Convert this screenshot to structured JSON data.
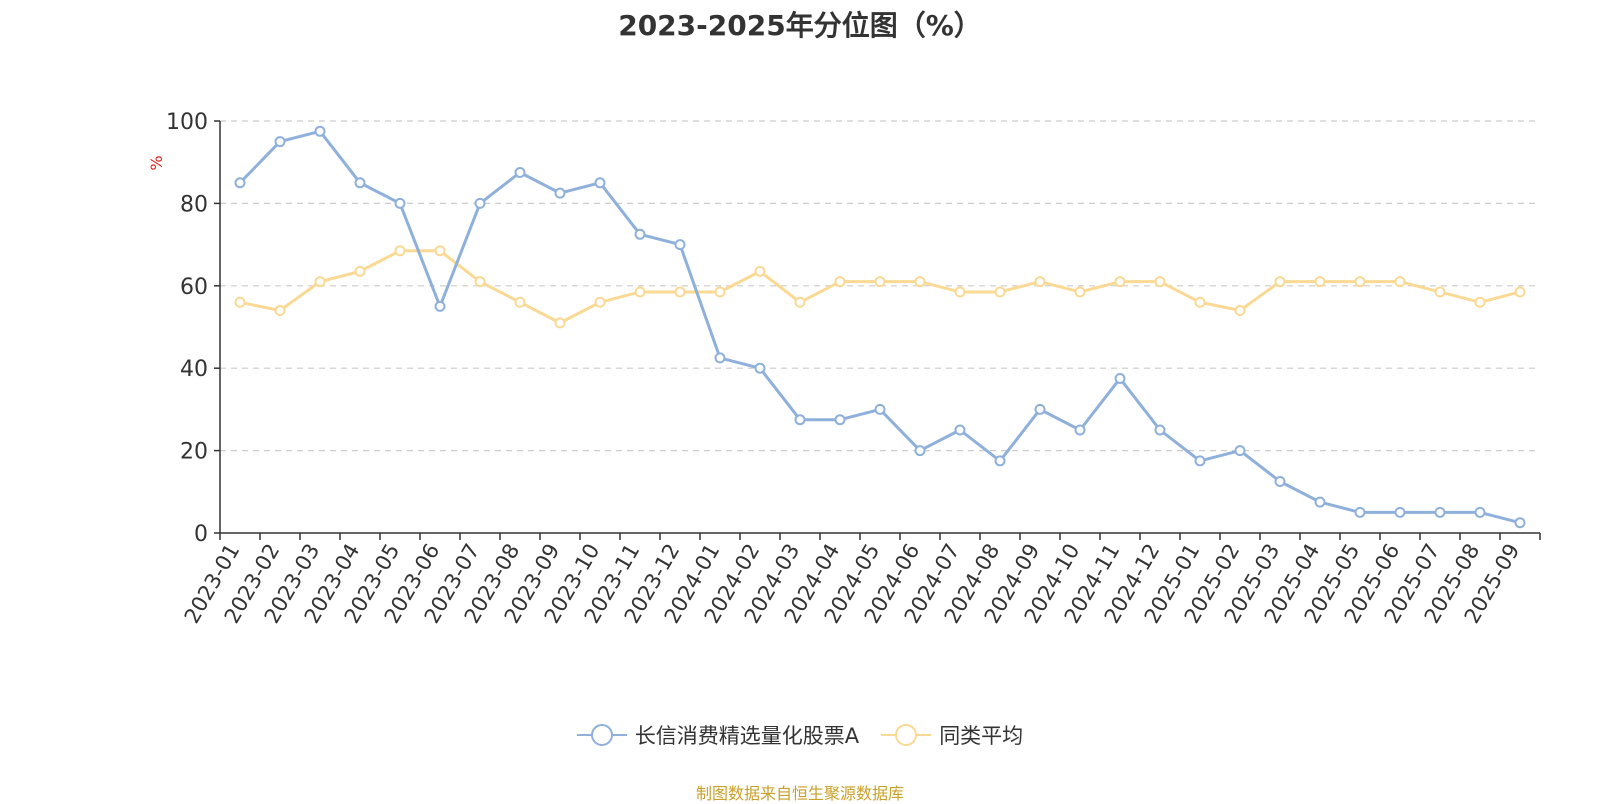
{
  "chart_data": {
    "type": "line",
    "title": "2023-2025年分位图（%）",
    "ylabel": "%",
    "ylim": [
      0,
      100
    ],
    "yticks": [
      0,
      20,
      40,
      60,
      80,
      100
    ],
    "grid": true,
    "legend_position": "bottom",
    "categories": [
      "2023-01",
      "2023-02",
      "2023-03",
      "2023-04",
      "2023-05",
      "2023-06",
      "2023-07",
      "2023-08",
      "2023-09",
      "2023-10",
      "2023-11",
      "2023-12",
      "2024-01",
      "2024-02",
      "2024-03",
      "2024-04",
      "2024-05",
      "2024-06",
      "2024-07",
      "2024-08",
      "2024-09",
      "2024-10",
      "2024-11",
      "2024-12",
      "2025-01",
      "2025-02",
      "2025-03",
      "2025-04",
      "2025-05",
      "2025-06",
      "2025-07",
      "2025-08",
      "2025-09"
    ],
    "series": [
      {
        "name": "长信消费精选量化股票A",
        "color": "#8eb0db",
        "values": [
          85,
          95,
          97.5,
          85,
          80,
          55,
          80,
          87.5,
          82.5,
          85,
          72.5,
          70,
          42.5,
          40,
          27.5,
          27.5,
          30,
          20,
          25,
          17.5,
          30,
          25,
          37.5,
          25,
          17.5,
          20,
          12.5,
          7.5,
          5,
          5,
          5,
          5,
          2.5
        ]
      },
      {
        "name": "同类平均",
        "color": "#fad994",
        "values": [
          56,
          54,
          61,
          63.5,
          68.5,
          68.5,
          61,
          56,
          51,
          56,
          58.5,
          58.5,
          58.5,
          63.5,
          56,
          61,
          61,
          61,
          58.5,
          58.5,
          61,
          58.5,
          61,
          61,
          56,
          54,
          61,
          61,
          61,
          61,
          58.5,
          56,
          58.5
        ]
      }
    ]
  },
  "source": "制图数据来自恒生聚源数据库"
}
